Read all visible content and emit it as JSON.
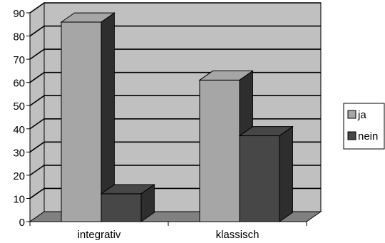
{
  "chart_data": {
    "type": "bar",
    "style": "3d-clustered",
    "categories": [
      "integrativ",
      "klassisch"
    ],
    "series": [
      {
        "name": "ja",
        "values": [
          86,
          61
        ]
      },
      {
        "name": "nein",
        "values": [
          12,
          37
        ]
      }
    ],
    "ylim": [
      0,
      90
    ],
    "yticks": [
      "0",
      "10",
      "20",
      "30",
      "40",
      "50",
      "60",
      "70",
      "80",
      "90"
    ],
    "grid": true,
    "legend_position": "right",
    "colors": {
      "ja": "#a6a6a6",
      "nein": "#474747",
      "wall": "#c0c0c0",
      "floor": "#808080"
    }
  }
}
